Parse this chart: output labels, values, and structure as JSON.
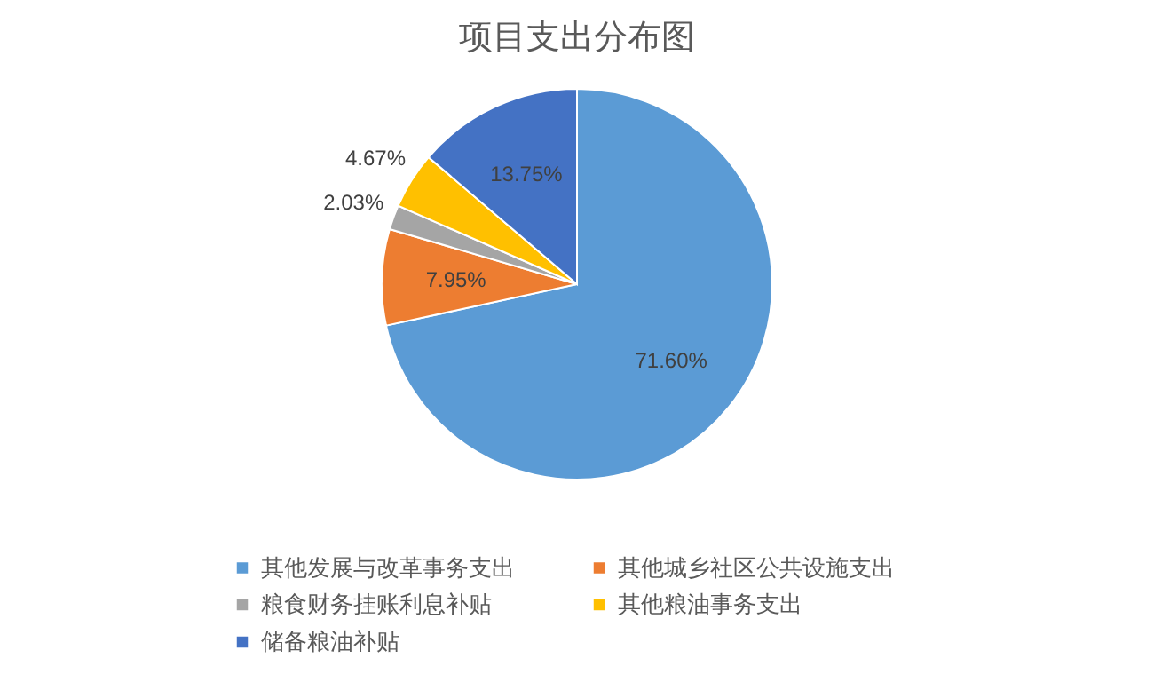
{
  "chart_data": {
    "type": "pie",
    "title": "项目支出分布图",
    "categories": [
      "其他发展与改革事务支出",
      "其他城乡社区公共设施支出",
      "粮食财务挂账利息补贴",
      "其他粮油事务支出",
      "储备粮油补贴"
    ],
    "values": [
      71.6,
      7.95,
      2.03,
      4.67,
      13.75
    ],
    "value_labels": [
      "71.60%",
      "7.95%",
      "2.03%",
      "4.67%",
      "13.75%"
    ],
    "colors": [
      "#5b9bd5",
      "#ed7d31",
      "#a5a5a5",
      "#ffc000",
      "#4472c4"
    ],
    "legend": "bottom"
  }
}
